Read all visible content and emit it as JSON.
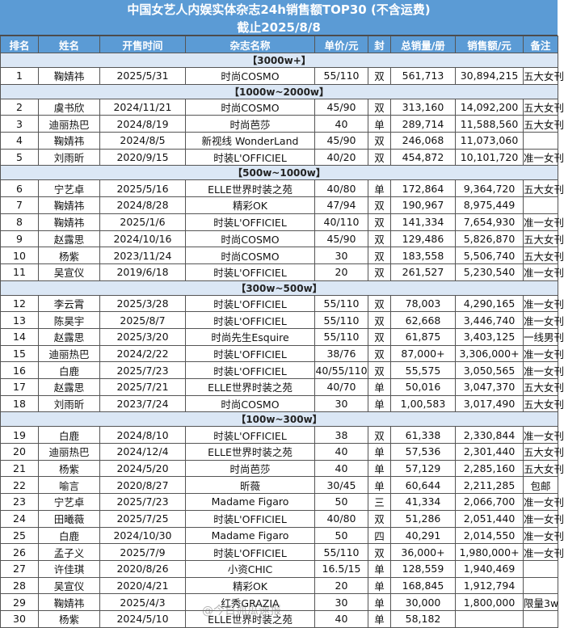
{
  "title": {
    "line1": "中国女艺人内娱实体杂志24h销售额TOP30 (不含运费)",
    "line2": "截止2025/8/8"
  },
  "headers": [
    "排名",
    "姓名",
    "开售时间",
    "杂志名称",
    "单价/元",
    "封",
    "总销量/册",
    "销售额/元",
    "备注"
  ],
  "sections": [
    {
      "label": "【3000w+】",
      "rows": [
        [
          "1",
          "鞠婧祎",
          "2025/5/31",
          "时尚COSMO",
          "55/110",
          "双",
          "561,713",
          "30,894,215",
          "五大女刊"
        ]
      ]
    },
    {
      "label": "【1000w~2000w】",
      "rows": [
        [
          "2",
          "虞书欣",
          "2024/11/21",
          "时尚COSMO",
          "45/90",
          "双",
          "313,160",
          "14,092,200",
          "五大女刊"
        ],
        [
          "3",
          "迪丽热巴",
          "2024/8/19",
          "时尚芭莎",
          "40",
          "单",
          "289,714",
          "11,588,560",
          "五大女刊"
        ],
        [
          "4",
          "鞠婧祎",
          "2024/8/5",
          "新视线 WonderLand",
          "45/90",
          "双",
          "246,068",
          "11,073,060",
          ""
        ],
        [
          "5",
          "刘雨昕",
          "2020/9/15",
          "时装L'OFFICIEL",
          "40/20",
          "双",
          "454,872",
          "10,101,720",
          "准一女刊"
        ]
      ]
    },
    {
      "label": "【500w~1000w】",
      "rows": [
        [
          "6",
          "宁艺卓",
          "2025/5/16",
          "ELLE世界时装之苑",
          "40/80",
          "单",
          "172,864",
          "9,364,720",
          "五大女刊"
        ],
        [
          "7",
          "鞠婧祎",
          "2024/8/28",
          "精彩OK",
          "47/94",
          "双",
          "190,967",
          "8,975,449",
          ""
        ],
        [
          "8",
          "鞠婧祎",
          "2025/1/6",
          "时装L'OFFICIEL",
          "40/110",
          "双",
          "141,334",
          "7,654,930",
          "准一女刊"
        ],
        [
          "9",
          "赵露思",
          "2024/10/16",
          "时尚COSMO",
          "45/90",
          "双",
          "129,486",
          "5,826,870",
          "五大女刊"
        ],
        [
          "10",
          "杨紫",
          "2023/11/24",
          "时尚COSMO",
          "30",
          "双",
          "183,558",
          "5,506,740",
          "五大女刊"
        ],
        [
          "11",
          "吴宣仪",
          "2019/6/18",
          "时装L'OFFICIEL",
          "20",
          "双",
          "261,527",
          "5,230,540",
          "准一女刊"
        ]
      ]
    },
    {
      "label": "【300w~500w】",
      "rows": [
        [
          "12",
          "李云霄",
          "2025/3/28",
          "时装L'OFFICIEL",
          "55/110",
          "双",
          "78,003",
          "4,290,165",
          "准一女刊"
        ],
        [
          "13",
          "陈昊宇",
          "2025/8/7",
          "时装L'OFFICIEL",
          "55/110",
          "双",
          "62,668",
          "3,446,740",
          "准一女刊"
        ],
        [
          "14",
          "赵露思",
          "2025/3/20",
          "时尚先生Esquire",
          "55/110",
          "双",
          "61,875",
          "3,403,125",
          "一线男刊"
        ],
        [
          "15",
          "迪丽热巴",
          "2024/2/22",
          "时装L'OFFICIEL",
          "38/76",
          "双",
          "87,000+",
          "3,306,000+",
          "准一女刊"
        ],
        [
          "16",
          "白鹿",
          "2025/7/23",
          "时装L'OFFICIEL",
          "40/55/110",
          "双",
          "55,575",
          "3,050,565",
          "准一女刊"
        ],
        [
          "17",
          "赵露思",
          "2025/7/21",
          "ELLE世界时装之苑",
          "40/70",
          "单",
          "50,016",
          "3,047,370",
          "五大女刊"
        ],
        [
          "18",
          "刘雨昕",
          "2023/7/24",
          "时尚COSMO",
          "30",
          "单",
          "1,00,583",
          "3,017,490",
          "五大女刊"
        ]
      ]
    },
    {
      "label": "【100w~300w】",
      "rows": [
        [
          "19",
          "白鹿",
          "2024/8/10",
          "时装L'OFFICIEL",
          "38",
          "双",
          "61,338",
          "2,330,844",
          "准一女刊"
        ],
        [
          "20",
          "迪丽热巴",
          "2024/12/4",
          "ELLE世界时装之苑",
          "40",
          "单",
          "57,536",
          "2,301,440",
          "五大女刊"
        ],
        [
          "21",
          "杨紫",
          "2024/5/20",
          "时尚芭莎",
          "40",
          "单",
          "57,129",
          "2,285,160",
          "五大女刊"
        ],
        [
          "22",
          "喻言",
          "2020/8/27",
          "昕薇",
          "30/45",
          "单",
          "60,644",
          "2,211,285",
          "包邮"
        ],
        [
          "23",
          "宁艺卓",
          "2025/7/23",
          "Madame Figaro",
          "50",
          "三",
          "41,334",
          "2,066,700",
          "准一女刊"
        ],
        [
          "24",
          "田曦薇",
          "2025/7/25",
          "时装L'OFFICIEL",
          "40/80",
          "双",
          "51,286",
          "2,051,440",
          "准一女刊"
        ],
        [
          "25",
          "白鹿",
          "2024/10/30",
          "Madame Figaro",
          "50",
          "四",
          "40,291",
          "2,014,550",
          "准一女刊"
        ],
        [
          "26",
          "孟子义",
          "2025/7/9",
          "时装L'OFFICIEL",
          "55/110",
          "双",
          "36,000+",
          "1,980,000+",
          "准一女刊"
        ],
        [
          "27",
          "许佳琪",
          "2020/8/26",
          "小资CHIC",
          "16.5/15",
          "单",
          "128,559",
          "1,940,469",
          ""
        ],
        [
          "28",
          "吴宣仪",
          "2020/4/21",
          "精彩OK",
          "20",
          "单",
          "168,845",
          "1,912,794",
          ""
        ],
        [
          "29",
          "鞠婧祎",
          "2025/4/3",
          "红秀GRAZIA",
          "30",
          "单",
          "30,000",
          "1,800,000",
          "限量3w"
        ],
        [
          "30",
          "杨紫",
          "2024/5/10",
          "ELLE世界时装之苑",
          "40",
          "单",
          "58,182",
          "",
          ""
        ]
      ]
    }
  ],
  "watermark": "@今日抓瓜速报",
  "colors": {
    "header_bg": "#5b9bd5",
    "section_bg": "#dbe7f5",
    "border": "#555555"
  }
}
